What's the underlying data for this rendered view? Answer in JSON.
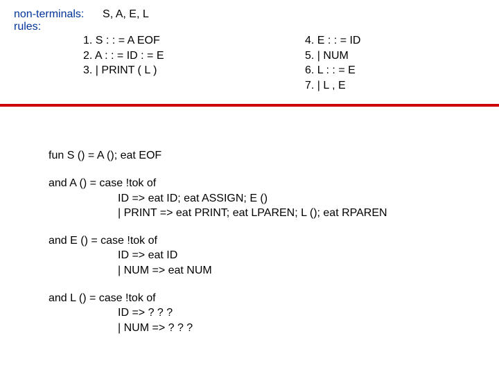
{
  "header": {
    "nonterminals_label": "non-terminals:",
    "nonterminals_value": "S, A, E, L",
    "rules_label": "rules:",
    "left": {
      "r1": "1.  S : : = A EOF",
      "r2": "2.  A : : = ID : = E",
      "r3": "3.       | PRINT ( L )"
    },
    "right": {
      "r4": "4. E : : = ID",
      "r5": "5.      | NUM",
      "r6": "6. L : : = E",
      "r7": "7.      | L , E"
    }
  },
  "funcs": {
    "s": "fun S () = A (); eat EOF",
    "a1": "and A () = case !tok of",
    "a2": "ID         =>   eat ID; eat ASSIGN; E ()",
    "a3": "| PRINT =>   eat PRINT; eat LPAREN; L (); eat RPAREN",
    "e1": "and E () = case !tok of",
    "e2": "ID         =>   eat ID",
    "e3": "| NUM    =>   eat NUM",
    "l1": "and L () = case !tok of",
    "l2": "ID         =>   ? ? ?",
    "l3": "| NUM    =>   ? ? ?"
  }
}
